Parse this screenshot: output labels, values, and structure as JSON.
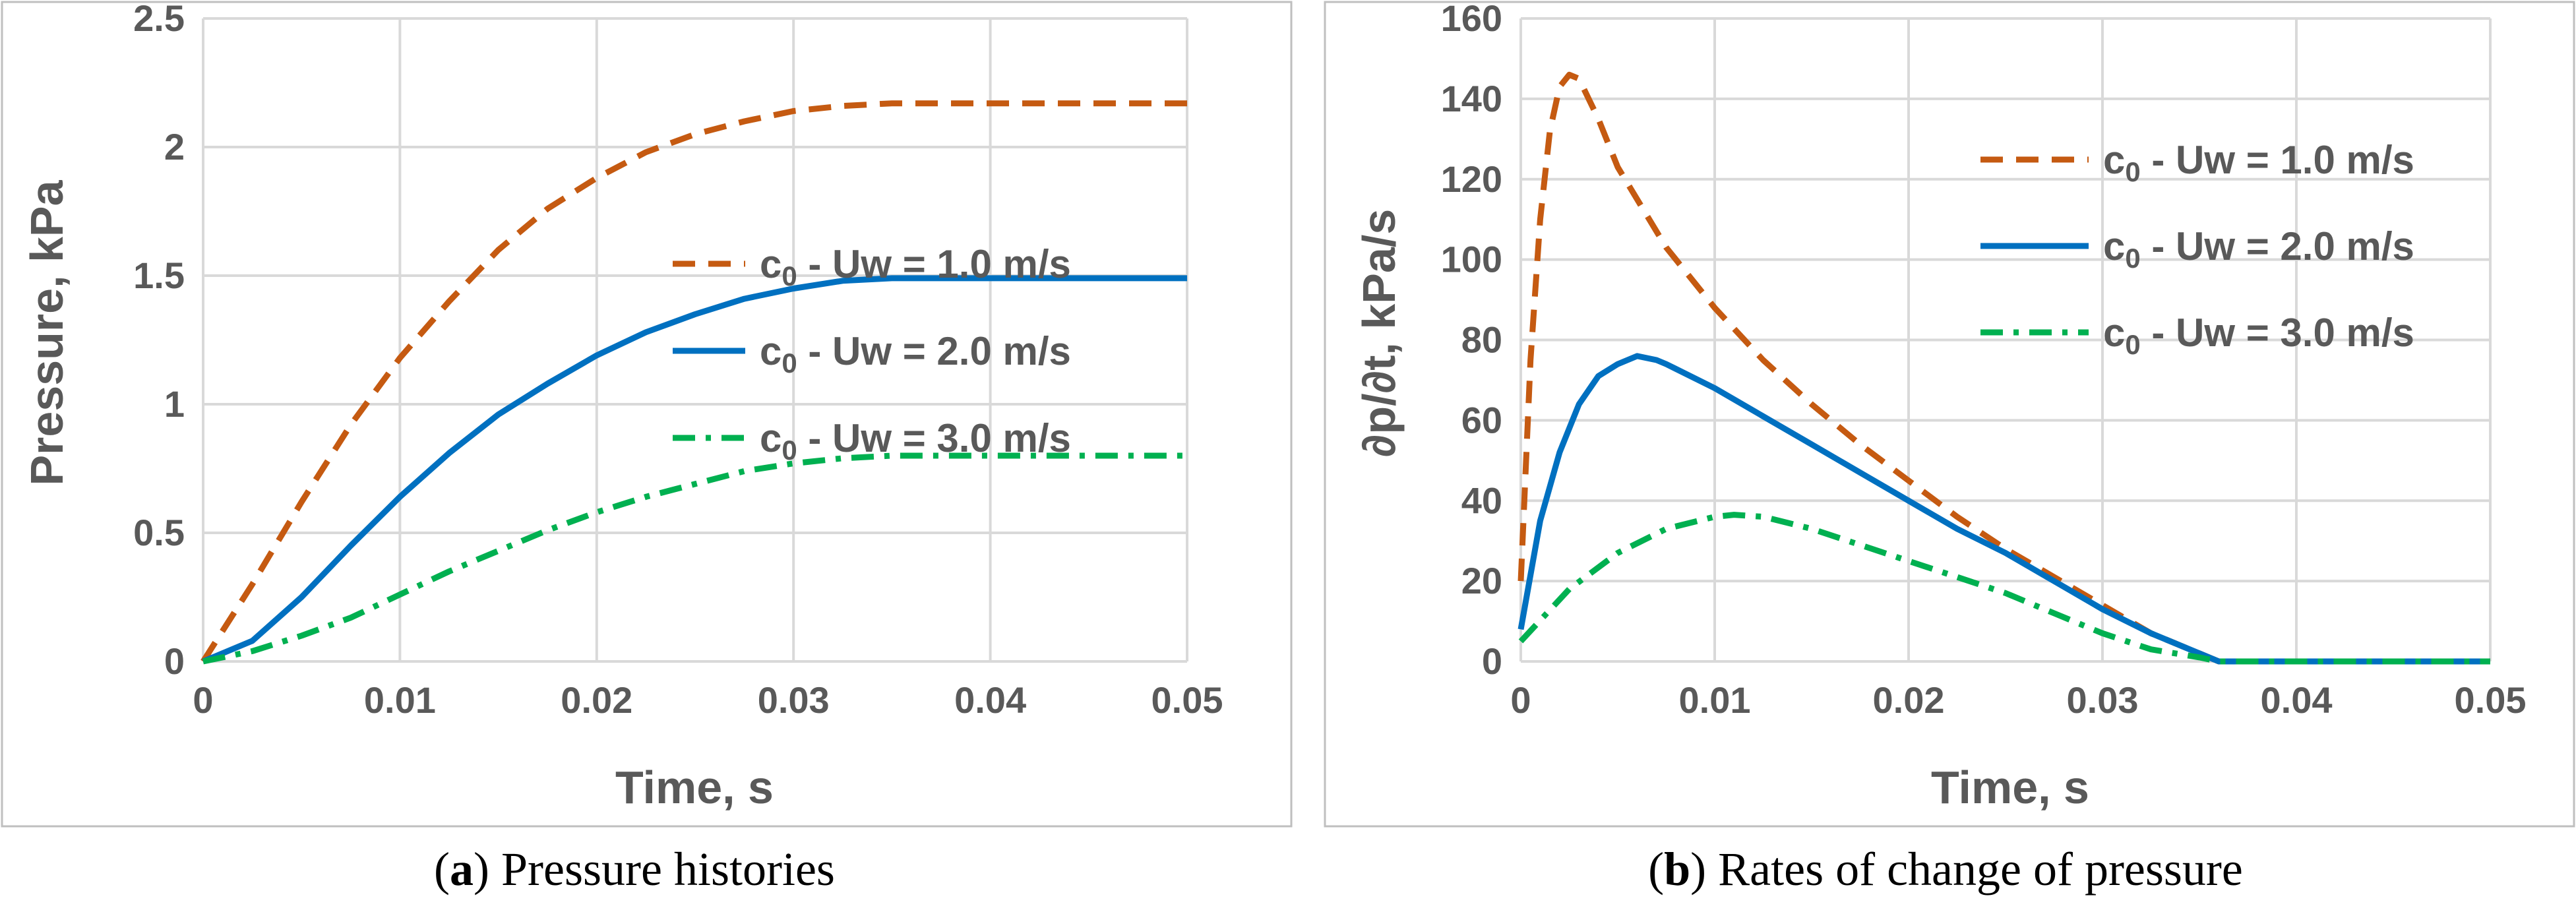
{
  "chart_data": [
    {
      "type": "line",
      "panel_letter": "a",
      "caption": "Pressure histories",
      "xlabel": "Time, s",
      "ylabel": "Pressure, kPa",
      "xlim": [
        0,
        0.05
      ],
      "ylim": [
        0,
        2.5
      ],
      "x_ticks": [
        "0",
        "0.01",
        "0.02",
        "0.03",
        "0.04",
        "0.05"
      ],
      "y_ticks": [
        "0",
        "0.5",
        "1",
        "1.5",
        "2",
        "2.5"
      ],
      "grid": true,
      "legend_position": "right",
      "series": [
        {
          "name_base": "c",
          "name_sub": "0",
          "name_rest": " - Uw = 1.0 m/s",
          "color": "#c55a11",
          "dash": "dashed",
          "points": [
            [
              0,
              0
            ],
            [
              0.0025,
              0.3
            ],
            [
              0.005,
              0.62
            ],
            [
              0.0075,
              0.92
            ],
            [
              0.01,
              1.18
            ],
            [
              0.0125,
              1.4
            ],
            [
              0.015,
              1.6
            ],
            [
              0.0175,
              1.76
            ],
            [
              0.02,
              1.88
            ],
            [
              0.0225,
              1.98
            ],
            [
              0.025,
              2.05
            ],
            [
              0.0275,
              2.1
            ],
            [
              0.03,
              2.14
            ],
            [
              0.0325,
              2.16
            ],
            [
              0.035,
              2.17
            ],
            [
              0.0375,
              2.17
            ],
            [
              0.04,
              2.17
            ],
            [
              0.045,
              2.17
            ],
            [
              0.05,
              2.17
            ]
          ]
        },
        {
          "name_base": "c",
          "name_sub": "0",
          "name_rest": " - Uw = 2.0 m/s",
          "color": "#0070c0",
          "dash": "solid",
          "points": [
            [
              0,
              0
            ],
            [
              0.0025,
              0.08
            ],
            [
              0.005,
              0.25
            ],
            [
              0.0075,
              0.45
            ],
            [
              0.01,
              0.64
            ],
            [
              0.0125,
              0.81
            ],
            [
              0.015,
              0.96
            ],
            [
              0.0175,
              1.08
            ],
            [
              0.02,
              1.19
            ],
            [
              0.0225,
              1.28
            ],
            [
              0.025,
              1.35
            ],
            [
              0.0275,
              1.41
            ],
            [
              0.03,
              1.45
            ],
            [
              0.0325,
              1.48
            ],
            [
              0.035,
              1.49
            ],
            [
              0.0375,
              1.49
            ],
            [
              0.04,
              1.49
            ],
            [
              0.045,
              1.49
            ],
            [
              0.05,
              1.49
            ]
          ]
        },
        {
          "name_base": "c",
          "name_sub": "0",
          "name_rest": " - Uw = 3.0 m/s",
          "color": "#00b050",
          "dash": "dashdot",
          "points": [
            [
              0,
              0
            ],
            [
              0.0025,
              0.04
            ],
            [
              0.005,
              0.1
            ],
            [
              0.0075,
              0.17
            ],
            [
              0.01,
              0.26
            ],
            [
              0.0125,
              0.35
            ],
            [
              0.015,
              0.43
            ],
            [
              0.0175,
              0.51
            ],
            [
              0.02,
              0.58
            ],
            [
              0.0225,
              0.64
            ],
            [
              0.025,
              0.69
            ],
            [
              0.0275,
              0.74
            ],
            [
              0.03,
              0.77
            ],
            [
              0.0325,
              0.79
            ],
            [
              0.035,
              0.8
            ],
            [
              0.0375,
              0.8
            ],
            [
              0.04,
              0.8
            ],
            [
              0.045,
              0.8
            ],
            [
              0.05,
              0.8
            ]
          ]
        }
      ]
    },
    {
      "type": "line",
      "panel_letter": "b",
      "caption": "Rates of change of pressure",
      "xlabel": "Time, s",
      "ylabel": "∂p/∂t, kPa/s",
      "xlim": [
        0,
        0.05
      ],
      "ylim": [
        0,
        160
      ],
      "x_ticks": [
        "0",
        "0.01",
        "0.02",
        "0.03",
        "0.04",
        "0.05"
      ],
      "y_ticks": [
        "0",
        "20",
        "40",
        "60",
        "80",
        "100",
        "120",
        "140",
        "160"
      ],
      "grid": true,
      "legend_position": "top-right",
      "series": [
        {
          "name_base": "c",
          "name_sub": "0",
          "name_rest": " - Uw = 1.0 m/s",
          "color": "#c55a11",
          "dash": "dashed",
          "points": [
            [
              0,
              20
            ],
            [
              0.0005,
              75
            ],
            [
              0.001,
              110
            ],
            [
              0.0015,
              132
            ],
            [
              0.002,
              143
            ],
            [
              0.0025,
              146
            ],
            [
              0.003,
              145
            ],
            [
              0.004,
              135
            ],
            [
              0.005,
              123
            ],
            [
              0.0075,
              103
            ],
            [
              0.01,
              88
            ],
            [
              0.0125,
              75
            ],
            [
              0.015,
              64
            ],
            [
              0.0175,
              54
            ],
            [
              0.02,
              45
            ],
            [
              0.0225,
              36
            ],
            [
              0.025,
              28
            ],
            [
              0.0275,
              21
            ],
            [
              0.03,
              14
            ],
            [
              0.0325,
              7
            ],
            [
              0.035,
              2
            ],
            [
              0.036,
              0
            ],
            [
              0.04,
              0
            ],
            [
              0.05,
              0
            ]
          ]
        },
        {
          "name_base": "c",
          "name_sub": "0",
          "name_rest": " - Uw = 2.0 m/s",
          "color": "#0070c0",
          "dash": "solid",
          "points": [
            [
              0,
              8
            ],
            [
              0.001,
              35
            ],
            [
              0.002,
              52
            ],
            [
              0.003,
              64
            ],
            [
              0.004,
              71
            ],
            [
              0.005,
              74
            ],
            [
              0.006,
              76
            ],
            [
              0.007,
              75
            ],
            [
              0.0075,
              74
            ],
            [
              0.01,
              68
            ],
            [
              0.0125,
              61
            ],
            [
              0.015,
              54
            ],
            [
              0.0175,
              47
            ],
            [
              0.02,
              40
            ],
            [
              0.0225,
              33
            ],
            [
              0.025,
              27
            ],
            [
              0.0275,
              20
            ],
            [
              0.03,
              13
            ],
            [
              0.0325,
              7
            ],
            [
              0.035,
              2
            ],
            [
              0.036,
              0
            ],
            [
              0.04,
              0
            ],
            [
              0.05,
              0
            ]
          ]
        },
        {
          "name_base": "c",
          "name_sub": "0",
          "name_rest": " - Uw = 3.0 m/s",
          "color": "#00b050",
          "dash": "dashdot",
          "points": [
            [
              0,
              5
            ],
            [
              0.0025,
              18
            ],
            [
              0.005,
              27
            ],
            [
              0.0075,
              33
            ],
            [
              0.01,
              36
            ],
            [
              0.011,
              36.5
            ],
            [
              0.0125,
              36
            ],
            [
              0.015,
              33
            ],
            [
              0.0175,
              29
            ],
            [
              0.02,
              25
            ],
            [
              0.0225,
              21
            ],
            [
              0.025,
              17
            ],
            [
              0.0275,
              12
            ],
            [
              0.03,
              7
            ],
            [
              0.0325,
              3
            ],
            [
              0.035,
              1
            ],
            [
              0.036,
              0
            ],
            [
              0.04,
              0
            ],
            [
              0.05,
              0
            ]
          ]
        }
      ]
    }
  ]
}
